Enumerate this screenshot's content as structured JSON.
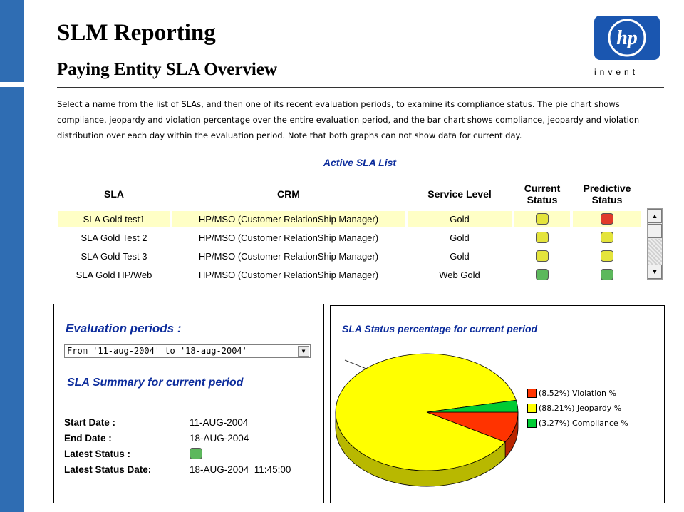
{
  "header": {
    "title": "SLM Reporting",
    "subtitle": "Paying Entity SLA Overview",
    "logo_text": "hp",
    "logo_tagline": "invent"
  },
  "intro": "Select a name from the list of SLAs, and then one of its recent evaluation periods, to examine its compliance status. The pie chart shows compliance, jeopardy and violation percentage over the entire evaluation period, and the bar chart shows compliance, jeopardy and violation distribution over each day within the evaluation period. Note that both graphs can not show data for current day.",
  "sla_list": {
    "title": "Active SLA List",
    "columns": [
      "SLA",
      "CRM",
      "Service Level",
      "Current Status",
      "Predictive Status"
    ],
    "rows": [
      {
        "sla": "SLA Gold test1",
        "crm": "HP/MSO (Customer RelationShip Manager)",
        "level": "Gold",
        "current": "yellow",
        "predictive": "red",
        "selected": true
      },
      {
        "sla": "SLA Gold Test 2",
        "crm": "HP/MSO (Customer RelationShip Manager)",
        "level": "Gold",
        "current": "yellow",
        "predictive": "yellow",
        "selected": false
      },
      {
        "sla": "SLA Gold Test 3",
        "crm": "HP/MSO (Customer RelationShip Manager)",
        "level": "Gold",
        "current": "yellow",
        "predictive": "yellow",
        "selected": false
      },
      {
        "sla": "SLA Gold HP/Web",
        "crm": "HP/MSO (Customer RelationShip Manager)",
        "level": "Web Gold",
        "current": "green",
        "predictive": "green",
        "selected": false
      }
    ]
  },
  "status_colors": {
    "yellow": "#e4e43c",
    "red": "#e03a2a",
    "green": "#5cb85c"
  },
  "evaluation": {
    "label": "Evaluation periods :",
    "selected_period": "From '11-aug-2004' to '18-aug-2004'"
  },
  "summary": {
    "title": "SLA Summary for current period",
    "start_label": "Start Date :",
    "start_value": "11-AUG-2004",
    "end_label": "End Date :",
    "end_value": "18-AUG-2004",
    "status_label": "Latest Status :",
    "status_value": "green",
    "status_date_label": "Latest Status Date:",
    "status_date_value": "18-AUG-2004  11:45:00"
  },
  "chart": {
    "title": "SLA Status percentage for current period"
  },
  "chart_data": {
    "type": "pie",
    "title": "SLA Status percentage for current period",
    "slices": [
      {
        "label": "(8.52%) Violation %",
        "value": 8.52,
        "color": "#ff3300"
      },
      {
        "label": "(88.21%) Jeopardy %",
        "value": 88.21,
        "color": "#ffff00"
      },
      {
        "label": "(3.27%) Compliance %",
        "value": 3.27,
        "color": "#00cc33"
      }
    ],
    "legend_position": "right"
  }
}
